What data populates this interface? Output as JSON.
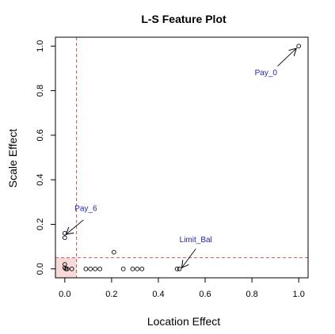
{
  "chart_data": {
    "type": "scatter",
    "title": "L-S Feature Plot",
    "xlabel": "Location Effect",
    "ylabel": "Scale Effect",
    "xlim": [
      -0.04,
      1.04
    ],
    "ylim": [
      -0.04,
      1.04
    ],
    "xticks": [
      "0.0",
      "0.2",
      "0.4",
      "0.6",
      "0.8",
      "1.0"
    ],
    "yticks": [
      "0.0",
      "0.2",
      "0.4",
      "0.6",
      "0.8",
      "1.0"
    ],
    "grid": false,
    "threshold_x": 0.05,
    "threshold_y": 0.05,
    "colors": {
      "points": "#000000",
      "threshold_lines": "#d9534f",
      "shaded_region": "#f7d9d9",
      "annotations": "#1f1fd6"
    },
    "points": [
      {
        "x": 1.0,
        "y": 1.0
      },
      {
        "x": 0.0,
        "y": 0.16
      },
      {
        "x": 0.0,
        "y": 0.14
      },
      {
        "x": 0.0,
        "y": 0.02
      },
      {
        "x": 0.0,
        "y": 0.005
      },
      {
        "x": 0.005,
        "y": 0.0
      },
      {
        "x": 0.01,
        "y": 0.0
      },
      {
        "x": 0.03,
        "y": 0.0
      },
      {
        "x": 0.09,
        "y": 0.0
      },
      {
        "x": 0.11,
        "y": 0.0
      },
      {
        "x": 0.13,
        "y": 0.0
      },
      {
        "x": 0.15,
        "y": 0.0
      },
      {
        "x": 0.21,
        "y": 0.075
      },
      {
        "x": 0.25,
        "y": 0.0
      },
      {
        "x": 0.29,
        "y": 0.0
      },
      {
        "x": 0.31,
        "y": 0.0
      },
      {
        "x": 0.33,
        "y": 0.0
      },
      {
        "x": 0.48,
        "y": 0.0
      },
      {
        "x": 0.49,
        "y": 0.0
      }
    ],
    "annotations": [
      {
        "text": "Pay_0",
        "x": 0.86,
        "y": 0.87,
        "point_x": 0.99,
        "point_y": 0.99,
        "from_x": 0.91,
        "from_y": 0.91
      },
      {
        "text": "Pay_6",
        "x": 0.09,
        "y": 0.26,
        "point_x": 0.005,
        "point_y": 0.155,
        "from_x": 0.08,
        "from_y": 0.22
      },
      {
        "text": "Limit_Bal",
        "x": 0.56,
        "y": 0.12,
        "point_x": 0.5,
        "point_y": 0.005,
        "from_x": 0.56,
        "from_y": 0.09
      }
    ]
  }
}
